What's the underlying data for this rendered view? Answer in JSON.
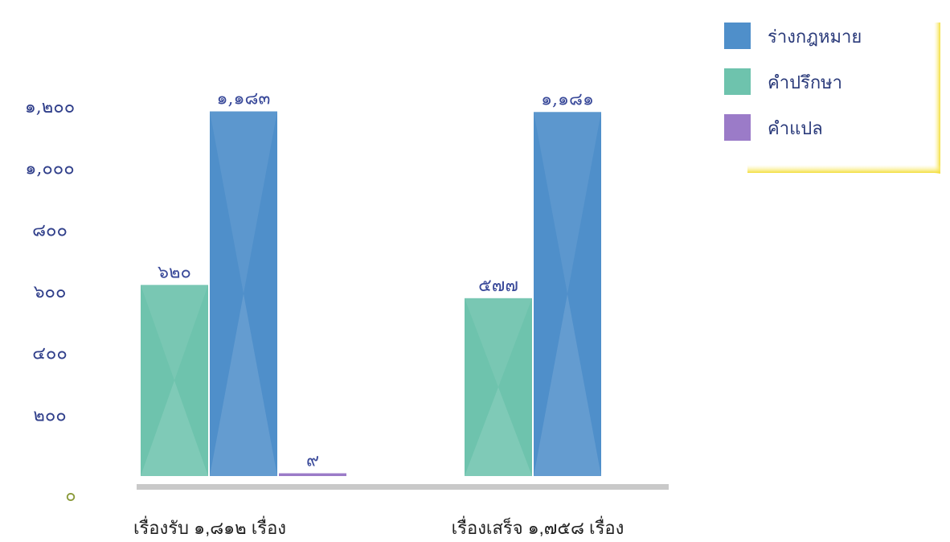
{
  "chart_data": {
    "type": "bar",
    "categories": [
      "เรื่องรับ ๑,๘๑๒ เรื่อง",
      "เรื่องเสร็จ ๑,๗๕๘ เรื่อง"
    ],
    "series": [
      {
        "name": "คำปรึกษา",
        "values": [
          620,
          577
        ],
        "labels": [
          "๖๒๐",
          "๕๗๗"
        ],
        "color": "#6ec3ad"
      },
      {
        "name": "ร่างกฎหมาย",
        "values": [
          1183,
          1181
        ],
        "labels": [
          "๑,๑๘๓",
          "๑,๑๘๑"
        ],
        "color": "#4f8fca"
      },
      {
        "name": "คำแปล",
        "values": [
          9,
          null
        ],
        "labels": [
          "๙",
          ""
        ],
        "color": "#9b7bc8"
      }
    ],
    "yticks": [
      {
        "value": 0,
        "label": "๐"
      },
      {
        "value": 200,
        "label": "๒๐๐"
      },
      {
        "value": 400,
        "label": "๔๐๐"
      },
      {
        "value": 600,
        "label": "๖๐๐"
      },
      {
        "value": 800,
        "label": "๘๐๐"
      },
      {
        "value": 1000,
        "label": "๑,๐๐๐"
      },
      {
        "value": 1200,
        "label": "๑,๒๐๐"
      }
    ],
    "ylim": [
      0,
      1200
    ],
    "legend_order": [
      "ร่างกฎหมาย",
      "คำปรึกษา",
      "คำแปล"
    ],
    "legend_position": "top-right",
    "grid": false
  }
}
